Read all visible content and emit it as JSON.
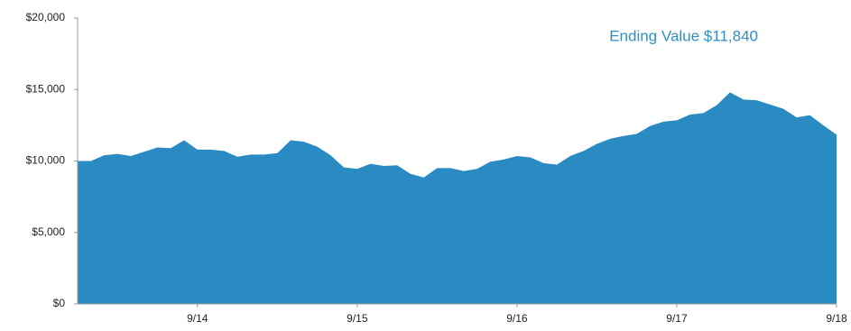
{
  "chart_data": {
    "type": "area",
    "annotation": "Ending Value $11,840",
    "color": "#2a8bc2",
    "x": [
      0,
      1,
      2,
      3,
      4,
      5,
      6,
      7,
      8,
      9,
      10,
      11,
      12,
      13,
      14,
      15,
      16,
      17,
      18,
      19,
      20,
      21,
      22,
      23,
      24,
      25,
      26,
      27,
      28,
      29,
      30,
      31,
      32,
      33,
      34,
      35,
      36,
      37,
      38,
      39,
      40,
      41,
      42,
      43,
      44,
      45,
      46,
      47,
      48,
      49,
      50,
      51,
      52,
      53,
      54,
      55,
      56,
      57
    ],
    "values": [
      10000,
      10000,
      10400,
      10500,
      10350,
      10650,
      10950,
      10900,
      11450,
      10800,
      10800,
      10700,
      10300,
      10450,
      10450,
      10550,
      11450,
      11350,
      11000,
      10400,
      9550,
      9450,
      9800,
      9650,
      9700,
      9100,
      8850,
      9500,
      9500,
      9300,
      9450,
      9950,
      10100,
      10350,
      10250,
      9850,
      9750,
      10350,
      10700,
      11200,
      11550,
      11750,
      11900,
      12450,
      12750,
      12850,
      13250,
      13350,
      13900,
      14800,
      14300,
      14250,
      13950,
      13650,
      13050,
      13200,
      12500,
      11840
    ],
    "xlim": [
      0,
      57
    ],
    "xticks": [
      {
        "value": 9,
        "label": "9/14"
      },
      {
        "value": 21,
        "label": "9/15"
      },
      {
        "value": 33,
        "label": "9/16"
      },
      {
        "value": 45,
        "label": "9/17"
      },
      {
        "value": 57,
        "label": "9/18"
      }
    ],
    "ylim": [
      0,
      20000
    ],
    "yticks": [
      {
        "value": 0,
        "label": "$0"
      },
      {
        "value": 5000,
        "label": "$5,000"
      },
      {
        "value": 10000,
        "label": "$10,000"
      },
      {
        "value": 15000,
        "label": "$15,000"
      },
      {
        "value": 20000,
        "label": "$20,000"
      }
    ]
  }
}
